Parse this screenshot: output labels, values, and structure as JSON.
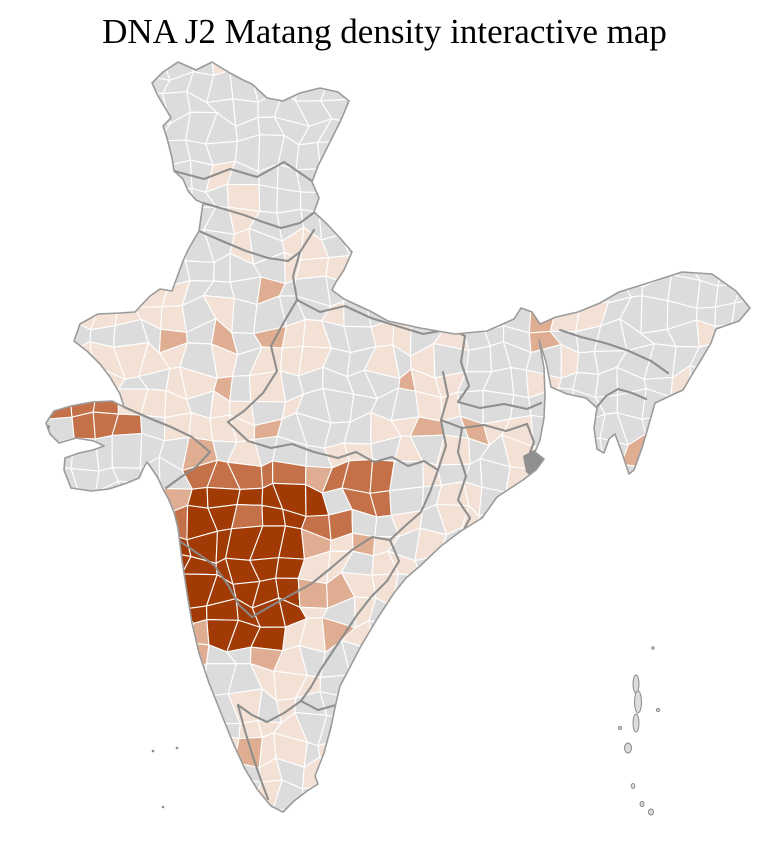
{
  "title": "DNA J2 Matang density interactive map",
  "map": {
    "region": "India",
    "level": "district",
    "palette": {
      "no_data": "#dcdcdd",
      "very_low": "#f3e1d6",
      "low": "#dfae92",
      "medium": "#c4714a",
      "high": "#a23a06"
    },
    "borders": {
      "district": "#ffffff",
      "state": "#8a8a8a",
      "coast": "#9b9b9b"
    },
    "water_mark": "#8f8f8f",
    "background": "#ffffff"
  }
}
